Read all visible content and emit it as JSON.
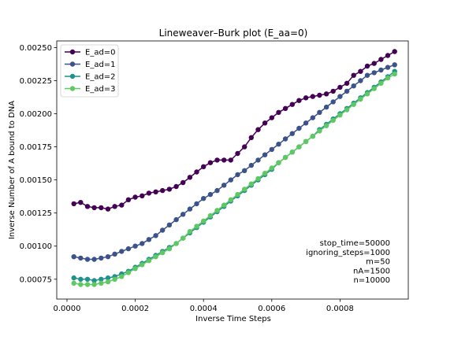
{
  "chart_data": {
    "type": "line",
    "title": "Lineweaver–Burk plot (E_aa=0)",
    "xlabel": "Inverse Time Steps",
    "ylabel": "Inverse Number of A bound to DNA",
    "xlim": [
      -3e-05,
      0.001
    ],
    "ylim": [
      0.0006,
      0.00255
    ],
    "xticks": [
      0.0,
      0.0002,
      0.0004,
      0.0006,
      0.0008
    ],
    "xtick_labels": [
      "0.0000",
      "0.0002",
      "0.0004",
      "0.0006",
      "0.0008"
    ],
    "yticks": [
      0.00075,
      0.001,
      0.00125,
      0.0015,
      0.00175,
      0.002,
      0.00225,
      0.0025
    ],
    "ytick_labels": [
      "0.00075",
      "0.00100",
      "0.00125",
      "0.00150",
      "0.00175",
      "0.00200",
      "0.00225",
      "0.00250"
    ],
    "grid": false,
    "legend_position": "top-left",
    "annotation": [
      "stop_time=50000",
      "ignoring_steps=1000",
      "m=50",
      "nA=1500",
      "n=10000"
    ],
    "series": [
      {
        "name": "E_ad=0",
        "color": "#440154",
        "x": [
          2e-05,
          4e-05,
          6e-05,
          8e-05,
          0.0001,
          0.00012,
          0.00014,
          0.00016,
          0.00018,
          0.0002,
          0.00022,
          0.00024,
          0.00026,
          0.00028,
          0.0003,
          0.00032,
          0.00034,
          0.00036,
          0.00038,
          0.0004,
          0.00042,
          0.00044,
          0.00046,
          0.00048,
          0.0005,
          0.00052,
          0.00054,
          0.00056,
          0.00058,
          0.0006,
          0.00062,
          0.00064,
          0.00066,
          0.00068,
          0.0007,
          0.00072,
          0.00074,
          0.00076,
          0.00078,
          0.0008,
          0.00082,
          0.00084,
          0.00086,
          0.00088,
          0.0009,
          0.00092,
          0.00094,
          0.00096
        ],
        "y": [
          0.00132,
          0.00133,
          0.0013,
          0.00129,
          0.00129,
          0.00128,
          0.0013,
          0.00131,
          0.00135,
          0.00137,
          0.00138,
          0.0014,
          0.00141,
          0.00142,
          0.00143,
          0.00145,
          0.00148,
          0.00152,
          0.00156,
          0.0016,
          0.00163,
          0.00165,
          0.00165,
          0.00165,
          0.0017,
          0.00175,
          0.00182,
          0.00188,
          0.00193,
          0.00197,
          0.00201,
          0.00204,
          0.00207,
          0.0021,
          0.00212,
          0.00213,
          0.00214,
          0.00215,
          0.00217,
          0.0022,
          0.00223,
          0.00229,
          0.00232,
          0.00236,
          0.00238,
          0.00241,
          0.00244,
          0.00247
        ]
      },
      {
        "name": "E_ad=1",
        "color": "#3b528b",
        "x": [
          2e-05,
          4e-05,
          6e-05,
          8e-05,
          0.0001,
          0.00012,
          0.00014,
          0.00016,
          0.00018,
          0.0002,
          0.00022,
          0.00024,
          0.00026,
          0.00028,
          0.0003,
          0.00032,
          0.00034,
          0.00036,
          0.00038,
          0.0004,
          0.00042,
          0.00044,
          0.00046,
          0.00048,
          0.0005,
          0.00052,
          0.00054,
          0.00056,
          0.00058,
          0.0006,
          0.00062,
          0.00064,
          0.00066,
          0.00068,
          0.0007,
          0.00072,
          0.00074,
          0.00076,
          0.00078,
          0.0008,
          0.00082,
          0.00084,
          0.00086,
          0.00088,
          0.0009,
          0.00092,
          0.00094,
          0.00096
        ],
        "y": [
          0.00092,
          0.00091,
          0.0009,
          0.0009,
          0.00091,
          0.00092,
          0.00094,
          0.00096,
          0.00098,
          0.001,
          0.00102,
          0.00105,
          0.00108,
          0.00112,
          0.00116,
          0.0012,
          0.00124,
          0.00128,
          0.00132,
          0.00136,
          0.00139,
          0.00142,
          0.00146,
          0.0015,
          0.00154,
          0.00157,
          0.00161,
          0.00165,
          0.00169,
          0.00173,
          0.00177,
          0.00181,
          0.00185,
          0.00189,
          0.00193,
          0.00197,
          0.00201,
          0.00205,
          0.00209,
          0.00213,
          0.00217,
          0.00221,
          0.00225,
          0.00229,
          0.00231,
          0.00233,
          0.00235,
          0.00237
        ]
      },
      {
        "name": "E_ad=2",
        "color": "#21918c",
        "x": [
          2e-05,
          4e-05,
          6e-05,
          8e-05,
          0.0001,
          0.00012,
          0.00014,
          0.00016,
          0.00018,
          0.0002,
          0.00022,
          0.00024,
          0.00026,
          0.00028,
          0.0003,
          0.00032,
          0.00034,
          0.00036,
          0.00038,
          0.0004,
          0.00042,
          0.00044,
          0.00046,
          0.00048,
          0.0005,
          0.00052,
          0.00054,
          0.00056,
          0.00058,
          0.0006,
          0.00062,
          0.00064,
          0.00066,
          0.00068,
          0.0007,
          0.00072,
          0.00074,
          0.00076,
          0.00078,
          0.0008,
          0.00082,
          0.00084,
          0.00086,
          0.00088,
          0.0009,
          0.00092,
          0.00094,
          0.00096
        ],
        "y": [
          0.00076,
          0.00075,
          0.00075,
          0.00074,
          0.00075,
          0.00076,
          0.00077,
          0.00079,
          0.00081,
          0.00084,
          0.00087,
          0.0009,
          0.00093,
          0.00096,
          0.00099,
          0.00102,
          0.00106,
          0.0011,
          0.00114,
          0.00118,
          0.00122,
          0.00126,
          0.0013,
          0.00134,
          0.00138,
          0.00142,
          0.00146,
          0.0015,
          0.00154,
          0.00158,
          0.00163,
          0.00167,
          0.00171,
          0.00175,
          0.00179,
          0.00183,
          0.00188,
          0.00192,
          0.00196,
          0.002,
          0.00204,
          0.00208,
          0.00212,
          0.00216,
          0.0022,
          0.00224,
          0.00228,
          0.00232
        ]
      },
      {
        "name": "E_ad=3",
        "color": "#5ec962",
        "x": [
          2e-05,
          4e-05,
          6e-05,
          8e-05,
          0.0001,
          0.00012,
          0.00014,
          0.00016,
          0.00018,
          0.0002,
          0.00022,
          0.00024,
          0.00026,
          0.00028,
          0.0003,
          0.00032,
          0.00034,
          0.00036,
          0.00038,
          0.0004,
          0.00042,
          0.00044,
          0.00046,
          0.00048,
          0.0005,
          0.00052,
          0.00054,
          0.00056,
          0.00058,
          0.0006,
          0.00062,
          0.00064,
          0.00066,
          0.00068,
          0.0007,
          0.00072,
          0.00074,
          0.00076,
          0.00078,
          0.0008,
          0.00082,
          0.00084,
          0.00086,
          0.00088,
          0.0009,
          0.00092,
          0.00094,
          0.00096
        ],
        "y": [
          0.00072,
          0.00071,
          0.00071,
          0.00071,
          0.00072,
          0.00073,
          0.00075,
          0.00077,
          0.0008,
          0.00083,
          0.00086,
          0.00089,
          0.00092,
          0.00095,
          0.00098,
          0.00102,
          0.00106,
          0.00111,
          0.00115,
          0.00119,
          0.00123,
          0.00127,
          0.00131,
          0.00135,
          0.00139,
          0.00143,
          0.00147,
          0.00151,
          0.00155,
          0.00159,
          0.00163,
          0.00167,
          0.00171,
          0.00175,
          0.00179,
          0.00183,
          0.00187,
          0.00191,
          0.00195,
          0.00199,
          0.00203,
          0.00207,
          0.00211,
          0.00215,
          0.00219,
          0.00223,
          0.00227,
          0.0023
        ]
      }
    ]
  }
}
